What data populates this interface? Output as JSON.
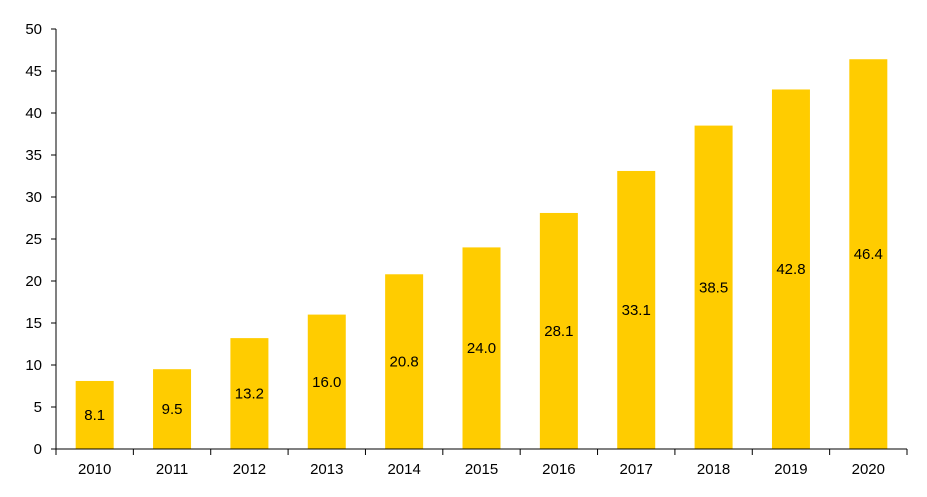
{
  "chart_data": {
    "type": "bar",
    "categories": [
      "2010",
      "2011",
      "2012",
      "2013",
      "2014",
      "2015",
      "2016",
      "2017",
      "2018",
      "2019",
      "2020"
    ],
    "values": [
      8.1,
      9.5,
      13.2,
      16.0,
      20.8,
      24.0,
      28.1,
      33.1,
      38.5,
      42.8,
      46.4
    ],
    "value_labels": [
      "8.1",
      "9.5",
      "13.2",
      "16.0",
      "20.8",
      "24.0",
      "28.1",
      "33.1",
      "38.5",
      "42.8",
      "46.4"
    ],
    "title": "",
    "xlabel": "",
    "ylabel": "",
    "ylim": [
      0,
      50
    ],
    "yticks": [
      "0",
      "5",
      "10",
      "15",
      "20",
      "25",
      "30",
      "35",
      "40",
      "45",
      "50"
    ],
    "grid": false,
    "legend": "none",
    "bar_color": "#FFCC00",
    "axis_color": "#000000"
  }
}
